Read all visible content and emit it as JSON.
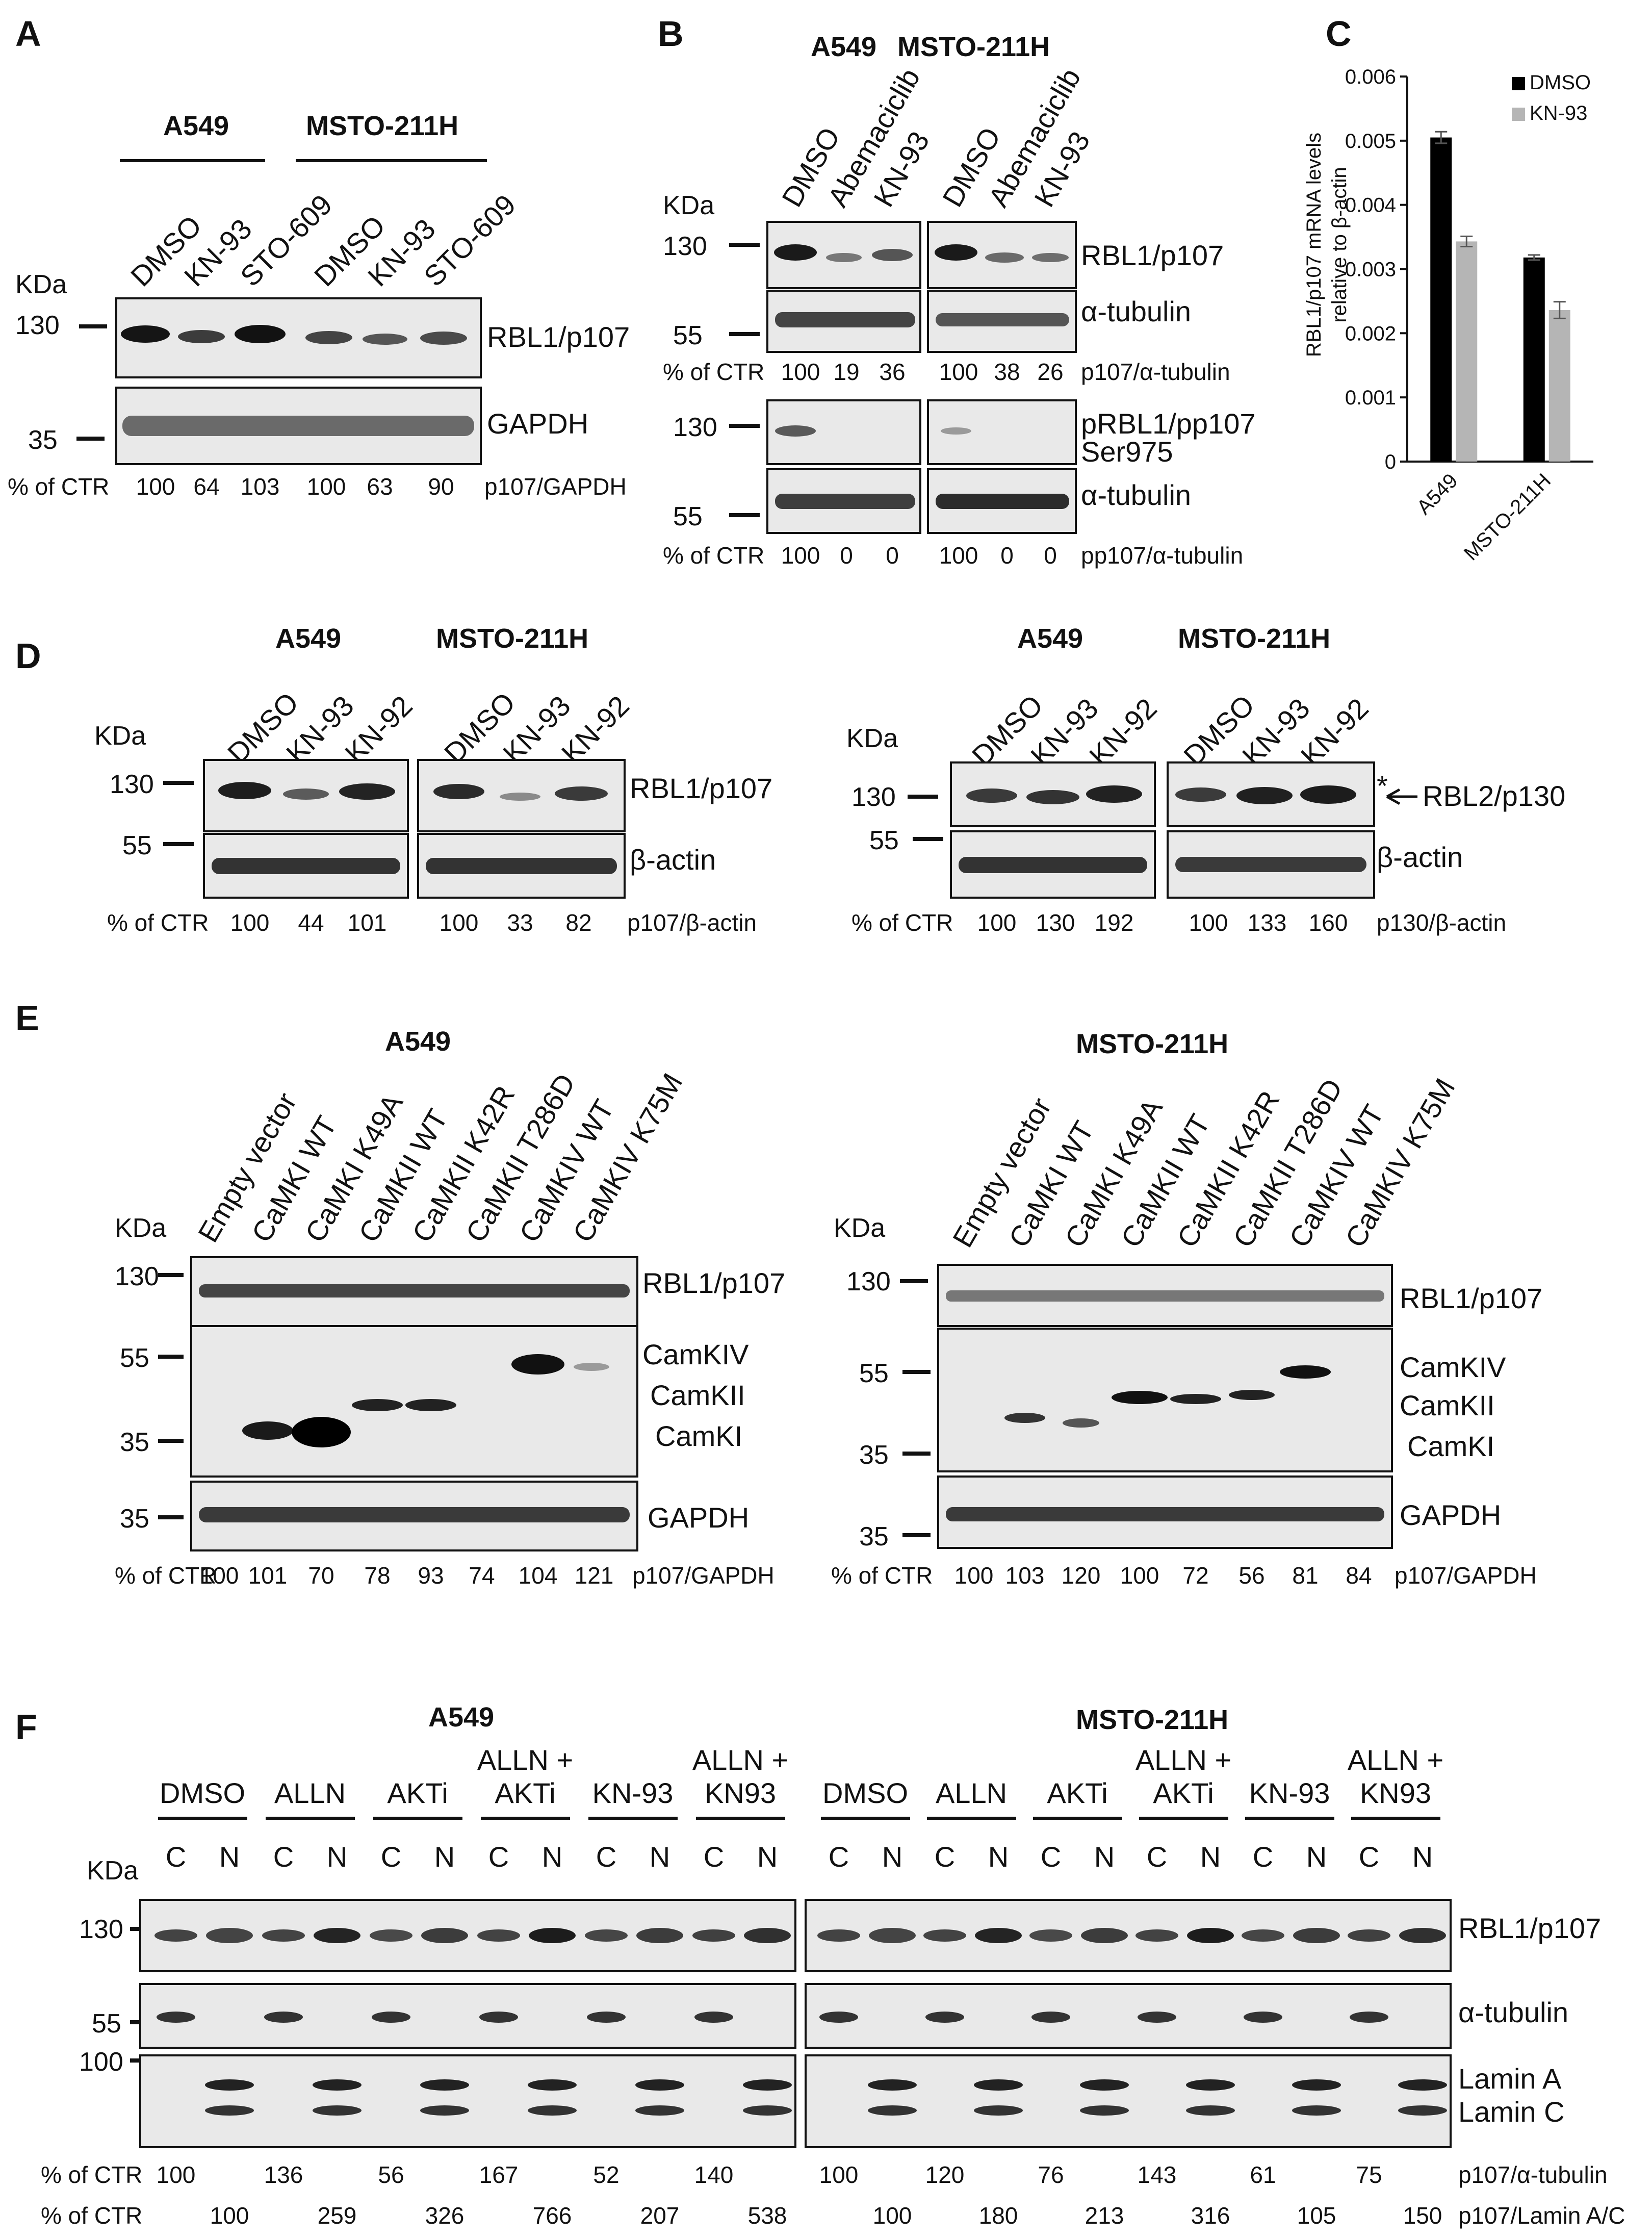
{
  "figure": {
    "panels": {
      "A": {
        "label": "A",
        "cell_lines": [
          "A549",
          "MSTO-211H"
        ],
        "lanes": [
          "DMSO",
          "KN-93",
          "STO-609",
          "DMSO",
          "KN-93",
          "STO-609"
        ],
        "kda_title": "KDa",
        "markers": [
          "130",
          "35"
        ],
        "proteins": [
          "RBL1/p107",
          "GAPDH"
        ],
        "quant_prefix": "% of CTR",
        "quant_values": [
          "100",
          "64",
          "103",
          "100",
          "63",
          "90"
        ],
        "quant_suffix": "p107/GAPDH"
      },
      "B": {
        "label": "B",
        "cell_lines": [
          "A549",
          "MSTO-211H"
        ],
        "lanes": [
          "DMSO",
          "Abemaciclib",
          "KN-93",
          "DMSO",
          "Abemaciclib",
          "KN-93"
        ],
        "kda_title": "KDa",
        "markers": [
          "130",
          "55",
          "130",
          "55"
        ],
        "proteins": [
          "RBL1/p107",
          "α-tubulin",
          "pRBL1/pp107",
          "Ser975",
          "α-tubulin"
        ],
        "quant_prefix": "% of CTR",
        "quant1_values": [
          "100",
          "19",
          "36",
          "100",
          "38",
          "26"
        ],
        "quant1_suffix": "p107/α-tubulin",
        "quant2_values": [
          "100",
          "0",
          "0",
          "100",
          "0",
          "0"
        ],
        "quant2_suffix": "pp107/α-tubulin"
      },
      "D": {
        "label": "D",
        "left": {
          "cell_lines": [
            "A549",
            "MSTO-211H"
          ],
          "lanes": [
            "DMSO",
            "KN-93",
            "KN-92",
            "DMSO",
            "KN-93",
            "KN-92"
          ],
          "kda_title": "KDa",
          "markers": [
            "130",
            "55"
          ],
          "proteins": [
            "RBL1/p107",
            "β-actin"
          ],
          "quant_prefix": "% of CTR",
          "quant_values": [
            "100",
            "44",
            "101",
            "100",
            "33",
            "82"
          ],
          "quant_suffix": "p107/β-actin"
        },
        "right": {
          "cell_lines": [
            "A549",
            "MSTO-211H"
          ],
          "lanes": [
            "DMSO",
            "KN-93",
            "KN-92",
            "DMSO",
            "KN-93",
            "KN-92"
          ],
          "kda_title": "KDa",
          "markers": [
            "130",
            "55"
          ],
          "proteins": [
            "RBL2/p130",
            "β-actin"
          ],
          "asterisk": "*",
          "quant_prefix": "% of CTR",
          "quant_values": [
            "100",
            "130",
            "192",
            "100",
            "133",
            "160"
          ],
          "quant_suffix": "p130/β-actin"
        }
      },
      "E": {
        "label": "E",
        "lanes": [
          "Empty vector",
          "CaMKI WT",
          "CaMKI K49A",
          "CaMKII WT",
          "CaMKII K42R",
          "CaMKII T286D",
          "CaMKIV WT",
          "CaMKIV K75M"
        ],
        "kda_title": "KDa",
        "markers": [
          "130",
          "55",
          "35",
          "35"
        ],
        "proteins": [
          "RBL1/p107",
          "CamKIV",
          "CamKII",
          "CamKI",
          "GAPDH"
        ],
        "quant_prefix": "% of CTR",
        "quant_suffix": "p107/GAPDH",
        "left": {
          "cell_line": "A549",
          "quant_values": [
            "100",
            "101",
            "70",
            "78",
            "93",
            "74",
            "104",
            "121"
          ]
        },
        "right": {
          "cell_line": "MSTO-211H",
          "quant_values": [
            "100",
            "103",
            "120",
            "100",
            "72",
            "56",
            "81",
            "84"
          ]
        }
      },
      "F": {
        "label": "F",
        "cell_lines": [
          "A549",
          "MSTO-211H"
        ],
        "groups": [
          "DMSO",
          "ALLN",
          "AKTi",
          "ALLN +\nAKTi",
          "KN-93",
          "ALLN +\nKN93"
        ],
        "fractions": [
          "C",
          "N"
        ],
        "kda_title": "KDa",
        "markers": [
          "130",
          "55",
          "100"
        ],
        "proteins": [
          "RBL1/p107",
          "α-tubulin",
          "Lamin A",
          "Lamin C"
        ],
        "quant_prefix": "% of CTR",
        "left_row1": [
          "100",
          "136",
          "56",
          "167",
          "52",
          "140"
        ],
        "left_row2": [
          "100",
          "259",
          "326",
          "766",
          "207",
          "538"
        ],
        "right_row1": [
          "100",
          "120",
          "76",
          "143",
          "61",
          "75"
        ],
        "right_row2": [
          "100",
          "180",
          "213",
          "316",
          "105",
          "150"
        ],
        "row1_suffix": "p107/α-tubulin",
        "row2_suffix": "p107/Lamin A/C"
      }
    }
  },
  "chart_data": {
    "type": "bar",
    "panel": "C",
    "categories": [
      "A549",
      "MSTO-211H"
    ],
    "series": [
      {
        "name": "DMSO",
        "values": [
          0.00505,
          0.00318
        ],
        "errors": [
          9e-05,
          4e-05
        ],
        "color": "#000000"
      },
      {
        "name": "KN-93",
        "values": [
          0.00343,
          0.00236
        ],
        "errors": [
          8e-05,
          0.00013
        ],
        "color": "#b5b5b5"
      }
    ],
    "ylabel": "RBL1/p107 mRNA levels relative to β-actin",
    "ylim": [
      0,
      0.006
    ],
    "yticks": [
      "0",
      "0.001",
      "0.002",
      "0.003",
      "0.004",
      "0.005",
      "0.006"
    ],
    "legend_position": "top-right"
  }
}
